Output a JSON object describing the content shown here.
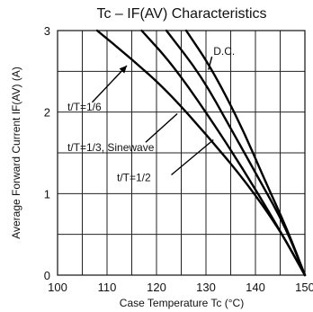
{
  "chart_data": {
    "type": "line",
    "title": "Tc – IF(AV) Characteristics",
    "xlabel": "Case Temperature  Tc (°C)",
    "ylabel": "Average Forward Current  IF(AV) (A)",
    "xlim": [
      100,
      150
    ],
    "ylim": [
      0,
      3
    ],
    "xticks": [
      "100",
      "110",
      "120",
      "130",
      "140",
      "150"
    ],
    "yticks": [
      "0",
      "1",
      "2",
      "3"
    ],
    "grid": true,
    "series": [
      {
        "name": "t/T=1/6",
        "x": [
          108,
          115,
          122,
          130,
          138,
          145,
          150
        ],
        "y": [
          3.0,
          2.65,
          2.27,
          1.73,
          1.15,
          0.55,
          0.0
        ]
      },
      {
        "name": "t/T=1/3, Sinewave",
        "x": [
          117,
          123,
          130,
          137,
          144,
          150
        ],
        "y": [
          3.0,
          2.6,
          2.0,
          1.35,
          0.65,
          0.0
        ]
      },
      {
        "name": "t/T=1/2",
        "x": [
          122,
          129,
          135,
          141,
          146,
          150
        ],
        "y": [
          3.0,
          2.45,
          1.8,
          1.15,
          0.6,
          0.0
        ]
      },
      {
        "name": "D.C.",
        "x": [
          126,
          131,
          137,
          142,
          146.5,
          150
        ],
        "y": [
          3.0,
          2.55,
          1.85,
          1.15,
          0.55,
          0.0
        ]
      }
    ],
    "annotations": [
      {
        "text": "D.C.",
        "x": 131.5,
        "y": 2.7
      },
      {
        "text": "t/T=1/6",
        "x": 102,
        "y": 2.02
      },
      {
        "text": "t/T=1/3, Sinewave",
        "x": 102,
        "y": 1.52
      },
      {
        "text": "t/T=1/2",
        "x": 112,
        "y": 1.15
      }
    ]
  }
}
